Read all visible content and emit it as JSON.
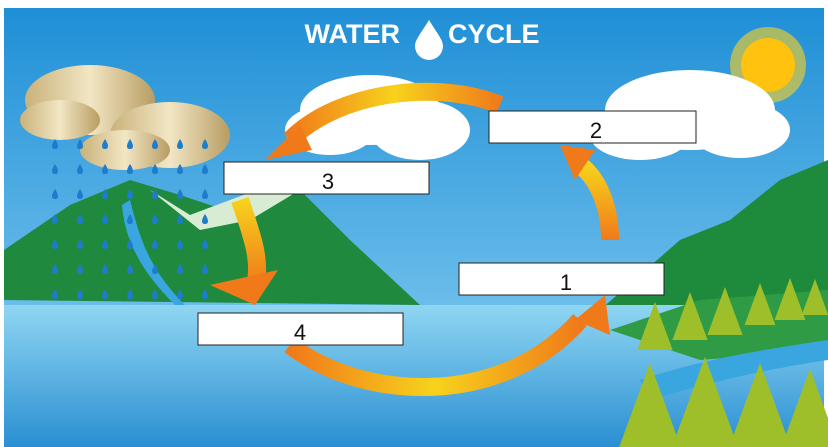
{
  "title": {
    "left": "WATER",
    "right": "CYCLE"
  },
  "boxes": [
    {
      "label": "1"
    },
    {
      "label": "2"
    },
    {
      "label": "3"
    },
    {
      "label": "4"
    }
  ]
}
